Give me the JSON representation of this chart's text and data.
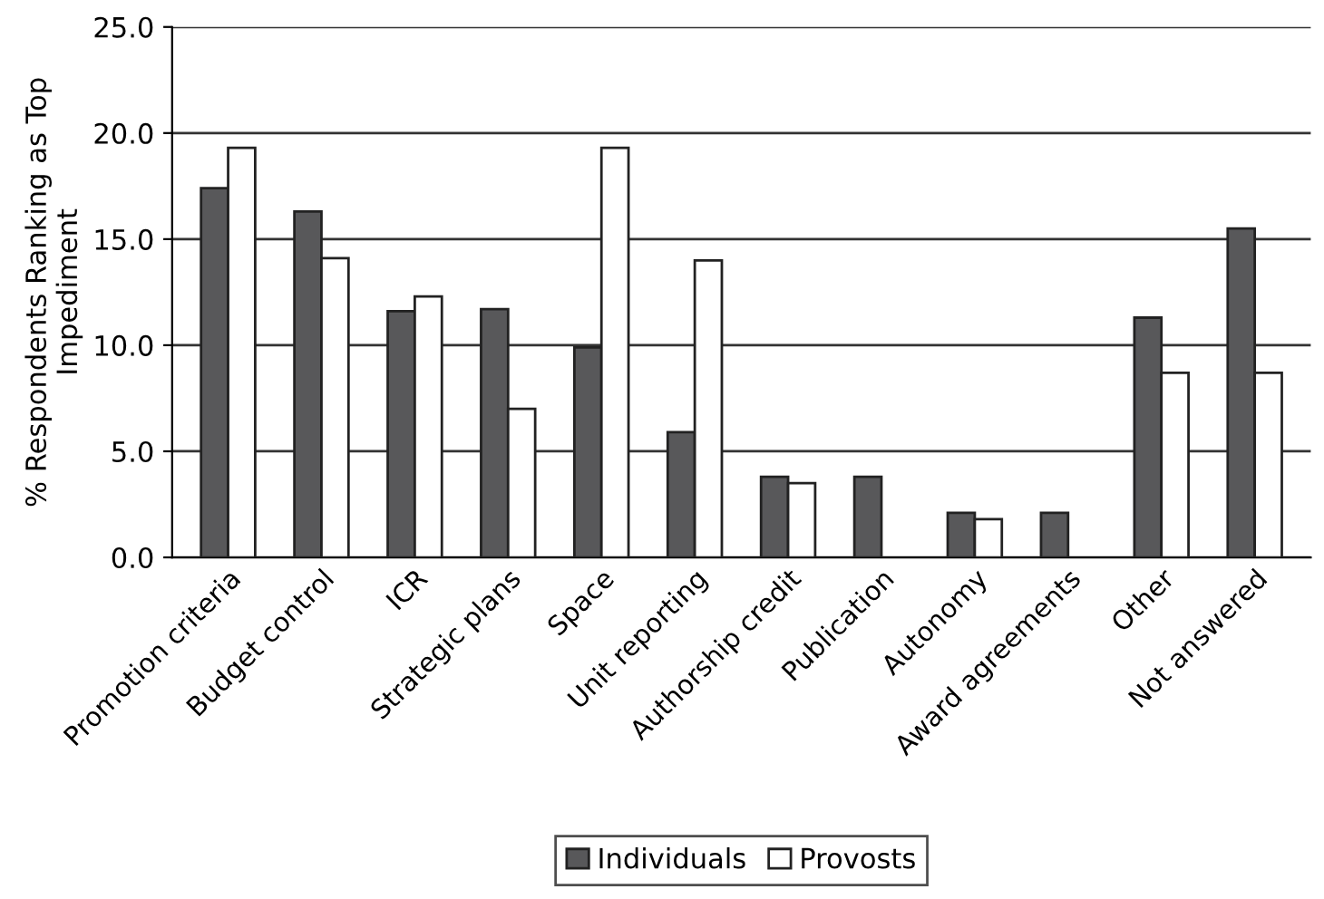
{
  "chart_data": {
    "type": "bar",
    "ylabel": "% Respondents Ranking as Top\nImpediment",
    "categories": [
      "Promotion criteria",
      "Budget control",
      "ICR",
      "Strategic plans",
      "Space",
      "Unit reporting",
      "Authorship credit",
      "Publication",
      "Autonomy",
      "Award agreements",
      "Other",
      "Not answered"
    ],
    "series": [
      {
        "name": "Individuals",
        "color": "#58585a",
        "values": [
          17.4,
          16.3,
          11.6,
          11.7,
          9.9,
          5.9,
          3.8,
          3.8,
          2.1,
          2.1,
          11.3,
          15.5
        ]
      },
      {
        "name": "Provosts",
        "color": "#ffffff",
        "values": [
          19.3,
          14.1,
          12.3,
          7.0,
          19.3,
          14.0,
          3.5,
          null,
          1.8,
          null,
          8.7,
          8.7
        ]
      }
    ],
    "ylim": [
      0,
      25
    ],
    "yticks": [
      {
        "value": 0,
        "label": "0.0"
      },
      {
        "value": 5,
        "label": "5.0"
      },
      {
        "value": 10,
        "label": "10.0"
      },
      {
        "value": 15,
        "label": "15.0"
      },
      {
        "value": 20,
        "label": "20.0"
      },
      {
        "value": 25,
        "label": "25.0"
      }
    ],
    "grid": "y",
    "legend": "bottom"
  }
}
